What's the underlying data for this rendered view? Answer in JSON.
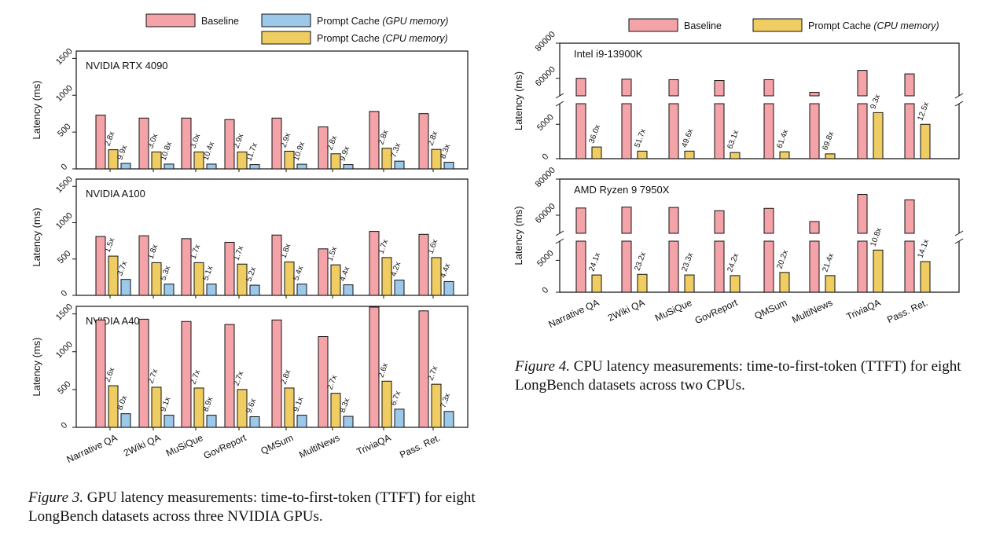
{
  "colors": {
    "baseline": "#f4a3a8",
    "gpu_cache": "#9cc8ea",
    "cpu_cache": "#f0cd62",
    "stroke": "#111111"
  },
  "legend_gpu": {
    "baseline": "Baseline",
    "gpu_cache_prefix": "Prompt Cache ",
    "gpu_cache_italic": "(GPU memory)",
    "cpu_cache_prefix": "Prompt Cache ",
    "cpu_cache_italic": "(CPU memory)"
  },
  "legend_cpu": {
    "baseline": "Baseline",
    "cpu_cache_prefix": "Prompt Cache ",
    "cpu_cache_italic": "(CPU memory)"
  },
  "captions": {
    "fig3_label": "Figure 3.",
    "fig3_text": " GPU latency measurements: time-to-first-token (TTFT) for eight LongBench datasets across three NVIDIA GPUs.",
    "fig4_label": "Figure 4.",
    "fig4_text": " CPU latency measurements: time-to-first-token (TTFT) for eight LongBench datasets across two CPUs."
  },
  "chart_data": [
    {
      "type": "bar",
      "title": "NVIDIA RTX 4090",
      "ylabel": "Latency (ms)",
      "ylim": [
        0,
        1600
      ],
      "yticks": [
        0,
        500,
        1000,
        1500
      ],
      "categories": [
        "Narrative QA",
        "2Wiki QA",
        "MuSiQue",
        "GovReport",
        "QMSum",
        "MultiNews",
        "TriviaQA",
        "Pass. Ret."
      ],
      "series": [
        {
          "name": "Baseline",
          "values": [
            730,
            690,
            690,
            670,
            690,
            570,
            780,
            750
          ]
        },
        {
          "name": "Prompt Cache (CPU memory)",
          "values": [
            260,
            230,
            230,
            230,
            240,
            205,
            280,
            265
          ],
          "labels": [
            "2.8x",
            "3.0x",
            "3.0x",
            "2.9x",
            "2.9x",
            "2.8x",
            "2.8x",
            "2.8x"
          ]
        },
        {
          "name": "Prompt Cache (GPU memory)",
          "values": [
            75,
            65,
            65,
            58,
            63,
            58,
            105,
            90
          ],
          "labels": [
            "9.9x",
            "10.8x",
            "10.4x",
            "11.7x",
            "10.9x",
            "9.9x",
            "7.3x",
            "8.3x"
          ]
        }
      ]
    },
    {
      "type": "bar",
      "title": "NVIDIA A100",
      "ylabel": "Latency (ms)",
      "ylim": [
        0,
        1600
      ],
      "yticks": [
        0,
        500,
        1000,
        1500
      ],
      "categories": [
        "Narrative QA",
        "2Wiki QA",
        "MuSiQue",
        "GovReport",
        "QMSum",
        "MultiNews",
        "TriviaQA",
        "Pass. Ret."
      ],
      "series": [
        {
          "name": "Baseline",
          "values": [
            810,
            820,
            780,
            730,
            830,
            640,
            880,
            840
          ]
        },
        {
          "name": "Prompt Cache (CPU memory)",
          "values": [
            540,
            450,
            450,
            430,
            460,
            420,
            520,
            520
          ],
          "labels": [
            "1.5x",
            "1.8x",
            "1.7x",
            "1.7x",
            "1.8x",
            "1.5x",
            "1.7x",
            "1.6x"
          ]
        },
        {
          "name": "Prompt Cache (GPU memory)",
          "values": [
            220,
            155,
            155,
            140,
            155,
            145,
            210,
            190
          ],
          "labels": [
            "3.7x",
            "5.3x",
            "5.1x",
            "5.2x",
            "5.4x",
            "4.4x",
            "4.2x",
            "4.4x"
          ]
        }
      ]
    },
    {
      "type": "bar",
      "title": "NVIDIA A40",
      "ylabel": "Latency (ms)",
      "ylim": [
        0,
        1600
      ],
      "yticks": [
        0,
        500,
        1000,
        1500
      ],
      "categories": [
        "Narrative QA",
        "2Wiki QA",
        "MuSiQue",
        "GovReport",
        "QMSum",
        "MultiNews",
        "TriviaQA",
        "Pass. Ret."
      ],
      "series": [
        {
          "name": "Baseline",
          "values": [
            1420,
            1430,
            1400,
            1360,
            1420,
            1200,
            1590,
            1540
          ]
        },
        {
          "name": "Prompt Cache (CPU memory)",
          "values": [
            550,
            530,
            520,
            500,
            520,
            450,
            610,
            570
          ],
          "labels": [
            "2.6x",
            "2.7x",
            "2.7x",
            "2.7x",
            "2.8x",
            "2.7x",
            "2.6x",
            "2.7x"
          ]
        },
        {
          "name": "Prompt Cache (GPU memory)",
          "values": [
            180,
            160,
            160,
            140,
            160,
            145,
            240,
            210
          ],
          "labels": [
            "8.0x",
            "9.1x",
            "8.9x",
            "9.6x",
            "9.1x",
            "8.3x",
            "6.7x",
            "7.3x"
          ]
        }
      ]
    },
    {
      "type": "bar",
      "title": "Intel i9-13900K",
      "ylabel": "Latency (ms)",
      "broken_axis": {
        "upper_range": [
          50000,
          80000
        ],
        "lower_range": [
          0,
          8000
        ]
      },
      "upper_yticks": [
        60000,
        80000
      ],
      "lower_yticks": [
        0,
        5000
      ],
      "categories": [
        "Narrative QA",
        "2Wiki QA",
        "MuSiQue",
        "GovReport",
        "QMSum",
        "MultiNews",
        "TriviaQA",
        "Pass. Ret."
      ],
      "series": [
        {
          "name": "Baseline",
          "values": [
            60000,
            59500,
            59200,
            58700,
            59200,
            52000,
            64500,
            62500
          ]
        },
        {
          "name": "Prompt Cache (CPU memory)",
          "values": [
            1700,
            1100,
            1100,
            900,
            1000,
            700,
            6700,
            5000
          ],
          "labels": [
            "36.0x",
            "51.7x",
            "49.6x",
            "63.1x",
            "61.4x",
            "69.8x",
            "9.3x",
            "12.5x"
          ]
        }
      ]
    },
    {
      "type": "bar",
      "title": "AMD Ryzen 9 7950X",
      "ylabel": "Latency (ms)",
      "broken_axis": {
        "upper_range": [
          50000,
          80000
        ],
        "lower_range": [
          0,
          8000
        ]
      },
      "upper_yticks": [
        60000,
        80000
      ],
      "lower_yticks": [
        0,
        5000
      ],
      "categories": [
        "Narrative QA",
        "2Wiki QA",
        "MuSiQue",
        "GovReport",
        "QMSum",
        "MultiNews",
        "TriviaQA",
        "Pass. Ret."
      ],
      "series": [
        {
          "name": "Baseline",
          "values": [
            64000,
            64500,
            64300,
            62500,
            63800,
            56500,
            71500,
            68500
          ]
        },
        {
          "name": "Prompt Cache (CPU memory)",
          "values": [
            2700,
            2800,
            2700,
            2600,
            3100,
            2600,
            6600,
            4800
          ],
          "labels": [
            "24.1x",
            "23.2x",
            "23.3x",
            "24.2x",
            "20.2x",
            "21.4x",
            "10.8x",
            "14.1x"
          ]
        }
      ]
    }
  ]
}
